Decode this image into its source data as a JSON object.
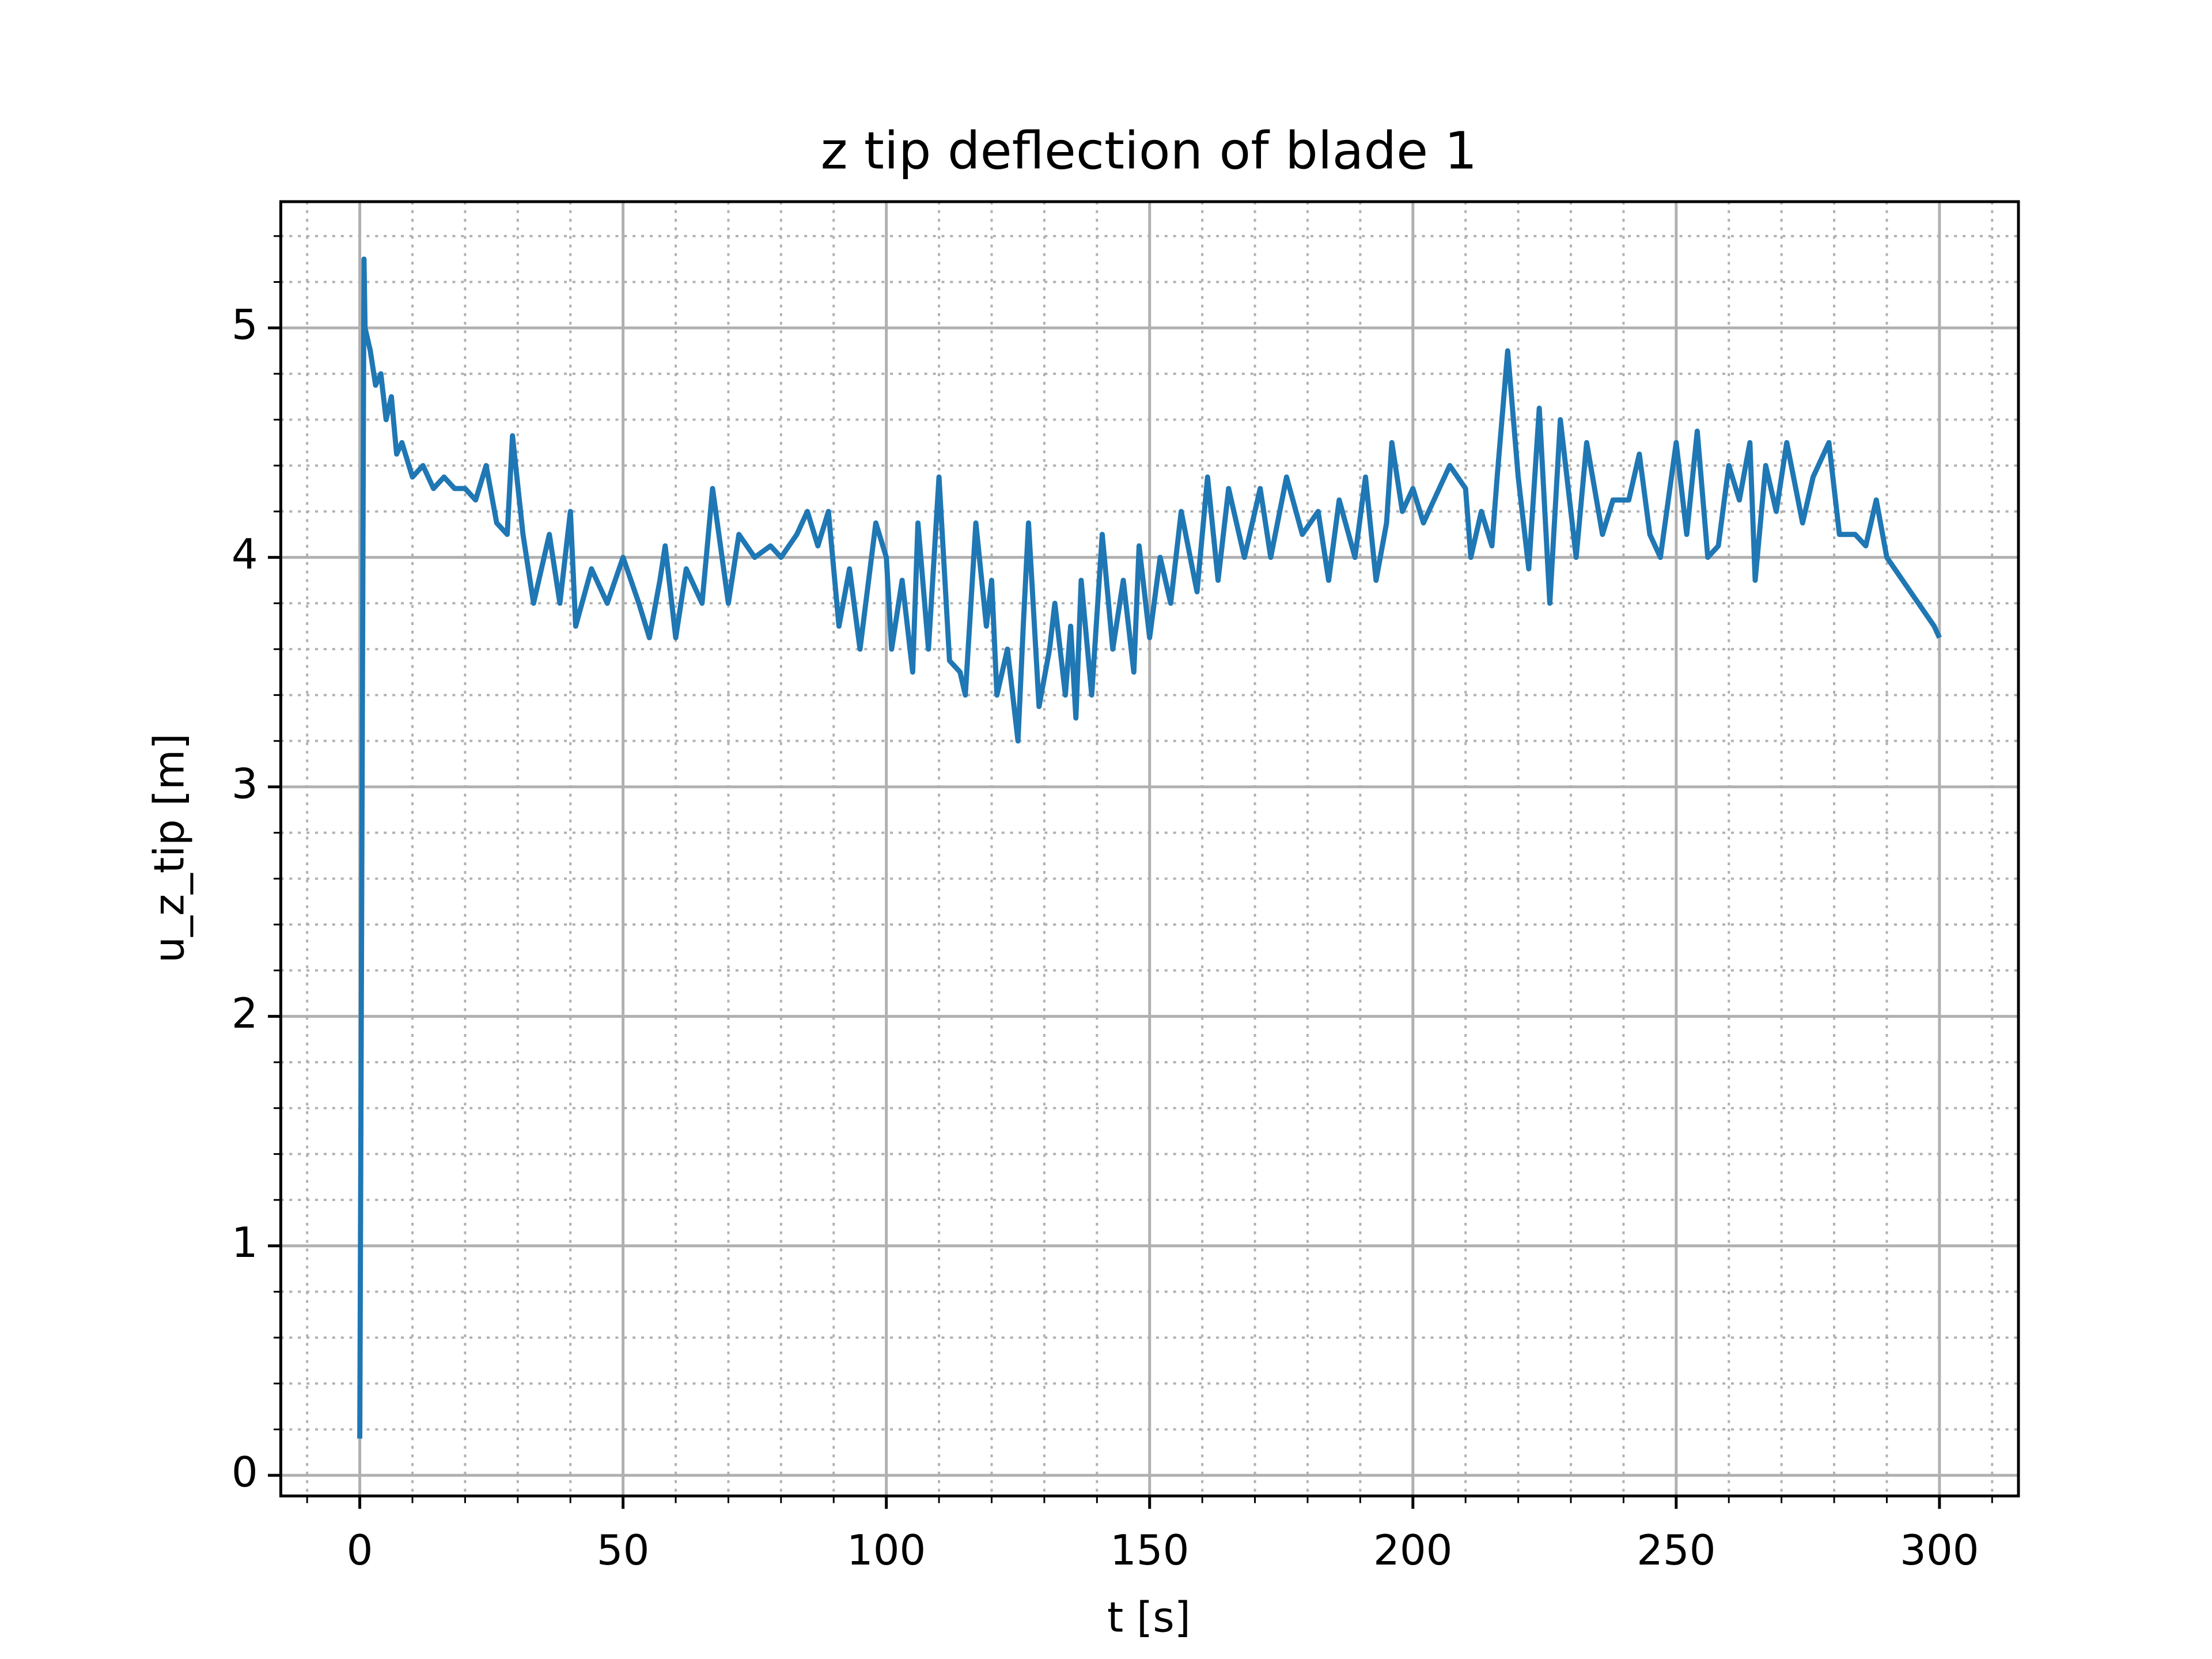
{
  "chart_data": {
    "type": "line",
    "title": "z tip deflection of blade 1",
    "xlabel": "t [s]",
    "ylabel": "u_z_tip [m]",
    "x": [
      0,
      0.8,
      1,
      2,
      3,
      4,
      5,
      6,
      7,
      8,
      10,
      12,
      14,
      16,
      18,
      20,
      22,
      24,
      26,
      28,
      29,
      31,
      33,
      36,
      38,
      40,
      41,
      44,
      47,
      50,
      53,
      55,
      57,
      58,
      60,
      62,
      65,
      67,
      70,
      72,
      75,
      78,
      80,
      83,
      85,
      87,
      89,
      91,
      93,
      95,
      98,
      100,
      101,
      103,
      105,
      106,
      108,
      110,
      112,
      114,
      115,
      117,
      119,
      120,
      121,
      123,
      125,
      126,
      127,
      129,
      131,
      132,
      134,
      135,
      136,
      137,
      139,
      141,
      143,
      145,
      147,
      148,
      150,
      152,
      154,
      156,
      159,
      161,
      163,
      165,
      168,
      171,
      173,
      176,
      179,
      182,
      184,
      186,
      189,
      191,
      193,
      195,
      196,
      198,
      200,
      202,
      205,
      207,
      210,
      211,
      213,
      215,
      216,
      218,
      220,
      222,
      224,
      226,
      228,
      231,
      233,
      236,
      238,
      241,
      243,
      245,
      247,
      250,
      252,
      254,
      256,
      258,
      260,
      262,
      264,
      265,
      267,
      269,
      271,
      274,
      276,
      279,
      281,
      284,
      286,
      288,
      290,
      293,
      296,
      299,
      300
    ],
    "series": [
      {
        "name": "u_z_tip",
        "color": "#1f77b4",
        "values": [
          0.16,
          5.3,
          5.0,
          4.9,
          4.75,
          4.8,
          4.6,
          4.7,
          4.45,
          4.5,
          4.35,
          4.4,
          4.3,
          4.35,
          4.3,
          4.3,
          4.25,
          4.4,
          4.15,
          4.1,
          4.53,
          4.1,
          3.8,
          4.1,
          3.8,
          4.2,
          3.7,
          3.95,
          3.8,
          4.0,
          3.8,
          3.65,
          3.9,
          4.05,
          3.65,
          3.95,
          3.8,
          4.3,
          3.8,
          4.1,
          4.0,
          4.05,
          4.0,
          4.1,
          4.2,
          4.05,
          4.2,
          3.7,
          3.95,
          3.6,
          4.15,
          4.0,
          3.6,
          3.9,
          3.5,
          4.15,
          3.6,
          4.35,
          3.55,
          3.5,
          3.4,
          4.15,
          3.7,
          3.9,
          3.4,
          3.6,
          3.2,
          3.7,
          4.15,
          3.35,
          3.6,
          3.8,
          3.4,
          3.7,
          3.3,
          3.9,
          3.4,
          4.1,
          3.6,
          3.9,
          3.5,
          4.05,
          3.65,
          4.0,
          3.8,
          4.2,
          3.85,
          4.35,
          3.9,
          4.3,
          4.0,
          4.3,
          4.0,
          4.35,
          4.1,
          4.2,
          3.9,
          4.25,
          4.0,
          4.35,
          3.9,
          4.15,
          4.5,
          4.2,
          4.3,
          4.15,
          4.3,
          4.4,
          4.3,
          4.0,
          4.2,
          4.05,
          4.35,
          4.9,
          4.35,
          3.95,
          4.65,
          3.8,
          4.6,
          4.0,
          4.5,
          4.1,
          4.25,
          4.25,
          4.45,
          4.1,
          4.0,
          4.5,
          4.1,
          4.55,
          4.0,
          4.05,
          4.4,
          4.25,
          4.5,
          3.9,
          4.4,
          4.2,
          4.5,
          4.15,
          4.35,
          4.5,
          4.1,
          4.1,
          4.05,
          4.25,
          4.0,
          3.9,
          3.8,
          3.7,
          3.65
        ]
      }
    ],
    "xlim": [
      -15,
      315
    ],
    "ylim": [
      -0.09,
      5.55
    ],
    "xticks": [
      0,
      50,
      100,
      150,
      200,
      250,
      300
    ],
    "yticks": [
      0,
      1,
      2,
      3,
      4,
      5
    ],
    "minor_xticks": [
      -10,
      10,
      20,
      30,
      40,
      60,
      70,
      80,
      90,
      110,
      120,
      130,
      140,
      160,
      170,
      180,
      190,
      210,
      220,
      230,
      240,
      260,
      270,
      280,
      290,
      310
    ],
    "minor_yticks": [
      0.2,
      0.4,
      0.6,
      0.8,
      1.2,
      1.4,
      1.6,
      1.8,
      2.2,
      2.4,
      2.6,
      2.8,
      3.2,
      3.4,
      3.6,
      3.8,
      4.2,
      4.4,
      4.6,
      4.8,
      5.2,
      5.4
    ],
    "grid": true
  }
}
